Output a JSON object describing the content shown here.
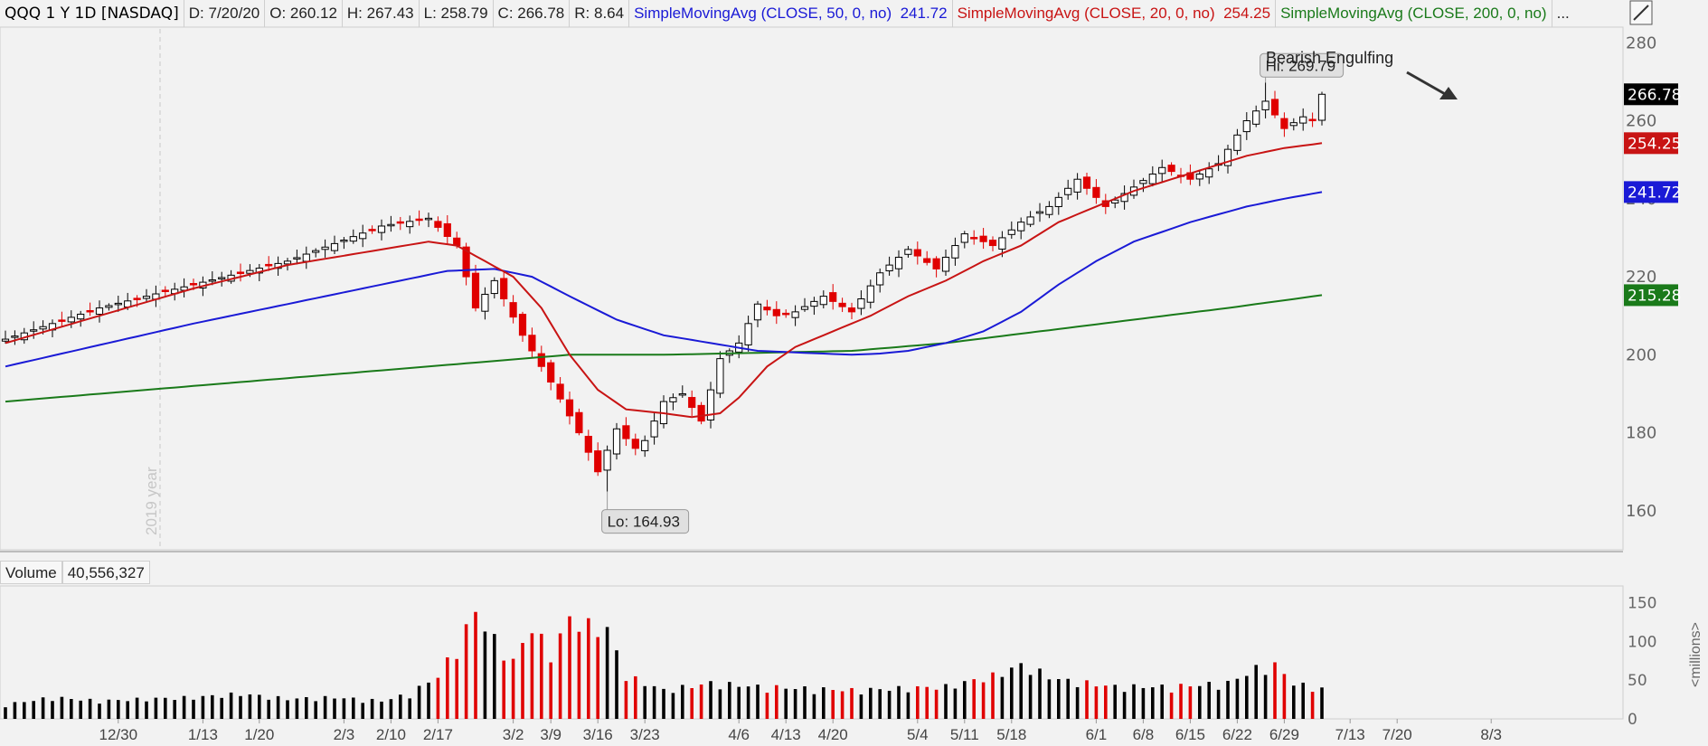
{
  "header": {
    "symbol": "QQQ 1 Y 1D [NASDAQ]",
    "date": "D: 7/20/20",
    "open": "O: 260.12",
    "high": "H: 267.43",
    "low": "L: 258.79",
    "close": "C: 266.78",
    "range": "R: 8.64",
    "sma50_label": "SimpleMovingAvg (CLOSE, 50, 0, no)",
    "sma50_value": "241.72",
    "sma20_label": "SimpleMovingAvg (CLOSE, 20, 0, no)",
    "sma20_value": "254.25",
    "sma200_label": "SimpleMovingAvg (CLOSE, 200, 0, no)",
    "sma200_value": "215.28",
    "more": "..."
  },
  "volume_header": {
    "label": "Volume",
    "value": "40,556,327"
  },
  "annotations": {
    "pattern": "Bearish Engulfing",
    "hi": "Hi: 269.79",
    "lo": "Lo: 164.93",
    "year": "2019 year"
  },
  "colors": {
    "up": "#000000",
    "down": "#e00000",
    "sma20": "#c81414",
    "sma50": "#1a1ad6",
    "sma200": "#1a7a1a"
  },
  "chart_data": [
    {
      "type": "candlestick",
      "ylim": [
        150,
        284
      ],
      "yticks": [
        160,
        180,
        200,
        220,
        240,
        260,
        280
      ],
      "xticks": [
        "12/30",
        "1/13",
        "1/20",
        "2/3",
        "2/10",
        "2/17",
        "3/2",
        "3/9",
        "3/16",
        "3/23",
        "4/6",
        "4/13",
        "4/20",
        "5/4",
        "5/11",
        "5/18",
        "6/1",
        "6/8",
        "6/15",
        "6/22",
        "6/29",
        "7/13",
        "7/20",
        "8/3"
      ],
      "price_labels": {
        "close": "266.78",
        "sma20": "254.25",
        "sma50": "241.72",
        "sma200": "215.28"
      },
      "knots_close": [
        [
          0,
          204
        ],
        [
          10,
          212
        ],
        [
          20,
          218
        ],
        [
          30,
          224
        ],
        [
          40,
          233
        ],
        [
          45,
          235
        ],
        [
          48,
          228
        ],
        [
          50,
          212
        ],
        [
          52,
          219
        ],
        [
          55,
          205
        ],
        [
          58,
          193
        ],
        [
          61,
          180
        ],
        [
          63,
          170
        ],
        [
          65,
          181
        ],
        [
          67,
          176
        ],
        [
          68,
          178
        ],
        [
          70,
          188
        ],
        [
          72,
          190
        ],
        [
          74,
          183
        ],
        [
          76,
          199
        ],
        [
          78,
          203
        ],
        [
          80,
          213
        ],
        [
          82,
          210
        ],
        [
          84,
          211
        ],
        [
          87,
          215
        ],
        [
          90,
          211
        ],
        [
          93,
          221
        ],
        [
          96,
          227
        ],
        [
          99,
          222
        ],
        [
          102,
          231
        ],
        [
          105,
          228
        ],
        [
          108,
          234
        ],
        [
          111,
          238
        ],
        [
          114,
          245
        ],
        [
          117,
          238
        ],
        [
          120,
          243
        ],
        [
          123,
          248
        ],
        [
          126,
          245
        ],
        [
          129,
          249
        ],
        [
          132,
          260
        ],
        [
          134,
          265
        ],
        [
          136,
          258
        ],
        [
          138,
          261
        ],
        [
          139,
          260
        ],
        [
          140,
          266.78
        ]
      ],
      "sma20": [
        [
          0,
          203
        ],
        [
          20,
          217
        ],
        [
          30,
          223
        ],
        [
          45,
          229
        ],
        [
          48,
          228
        ],
        [
          51,
          224
        ],
        [
          54,
          220
        ],
        [
          57,
          212
        ],
        [
          60,
          200
        ],
        [
          63,
          191
        ],
        [
          66,
          186
        ],
        [
          70,
          185
        ],
        [
          73,
          184
        ],
        [
          76,
          185
        ],
        [
          78,
          189
        ],
        [
          81,
          197
        ],
        [
          84,
          202
        ],
        [
          88,
          206
        ],
        [
          92,
          210
        ],
        [
          96,
          215
        ],
        [
          100,
          219
        ],
        [
          104,
          224
        ],
        [
          108,
          228
        ],
        [
          112,
          234
        ],
        [
          116,
          238
        ],
        [
          120,
          242
        ],
        [
          124,
          245
        ],
        [
          128,
          248
        ],
        [
          132,
          251
        ],
        [
          136,
          253
        ],
        [
          140,
          254.25
        ]
      ],
      "sma50": [
        [
          0,
          197
        ],
        [
          20,
          208
        ],
        [
          40,
          218
        ],
        [
          47,
          221.5
        ],
        [
          52,
          222
        ],
        [
          56,
          220
        ],
        [
          60,
          215
        ],
        [
          65,
          209
        ],
        [
          70,
          205
        ],
        [
          75,
          203
        ],
        [
          80,
          201
        ],
        [
          85,
          200.5
        ],
        [
          90,
          200
        ],
        [
          93,
          200.3
        ],
        [
          96,
          201
        ],
        [
          100,
          203
        ],
        [
          104,
          206
        ],
        [
          108,
          211
        ],
        [
          112,
          218
        ],
        [
          116,
          224
        ],
        [
          120,
          229
        ],
        [
          126,
          234
        ],
        [
          132,
          238
        ],
        [
          136,
          240
        ],
        [
          140,
          241.72
        ]
      ],
      "sma200": [
        [
          0,
          188
        ],
        [
          30,
          194
        ],
        [
          55,
          199
        ],
        [
          60,
          200
        ],
        [
          70,
          200
        ],
        [
          80,
          200.5
        ],
        [
          90,
          201
        ],
        [
          100,
          203
        ],
        [
          110,
          206
        ],
        [
          120,
          209
        ],
        [
          130,
          212
        ],
        [
          140,
          215.28
        ]
      ],
      "hi": {
        "index": 134,
        "value": 269.79
      },
      "lo": {
        "index": 64,
        "value": 164.93
      },
      "volume_ylim": [
        0,
        160
      ],
      "volume_yticks": [
        0,
        50,
        100,
        150
      ],
      "volume_unit": "<millions>",
      "knots_volume": [
        [
          0,
          20
        ],
        [
          5,
          30
        ],
        [
          10,
          25
        ],
        [
          15,
          28
        ],
        [
          20,
          30
        ],
        [
          25,
          35
        ],
        [
          30,
          28
        ],
        [
          35,
          30
        ],
        [
          40,
          25
        ],
        [
          43,
          35
        ],
        [
          46,
          60
        ],
        [
          48,
          100
        ],
        [
          50,
          150
        ],
        [
          52,
          110
        ],
        [
          54,
          80
        ],
        [
          56,
          130
        ],
        [
          58,
          90
        ],
        [
          60,
          140
        ],
        [
          62,
          130
        ],
        [
          64,
          125
        ],
        [
          66,
          60
        ],
        [
          68,
          50
        ],
        [
          70,
          40
        ],
        [
          75,
          50
        ],
        [
          80,
          45
        ],
        [
          90,
          40
        ],
        [
          100,
          45
        ],
        [
          105,
          60
        ],
        [
          108,
          75
        ],
        [
          112,
          55
        ],
        [
          118,
          45
        ],
        [
          124,
          45
        ],
        [
          130,
          50
        ],
        [
          133,
          70
        ],
        [
          135,
          75
        ],
        [
          137,
          50
        ],
        [
          140,
          40.56
        ]
      ]
    }
  ]
}
